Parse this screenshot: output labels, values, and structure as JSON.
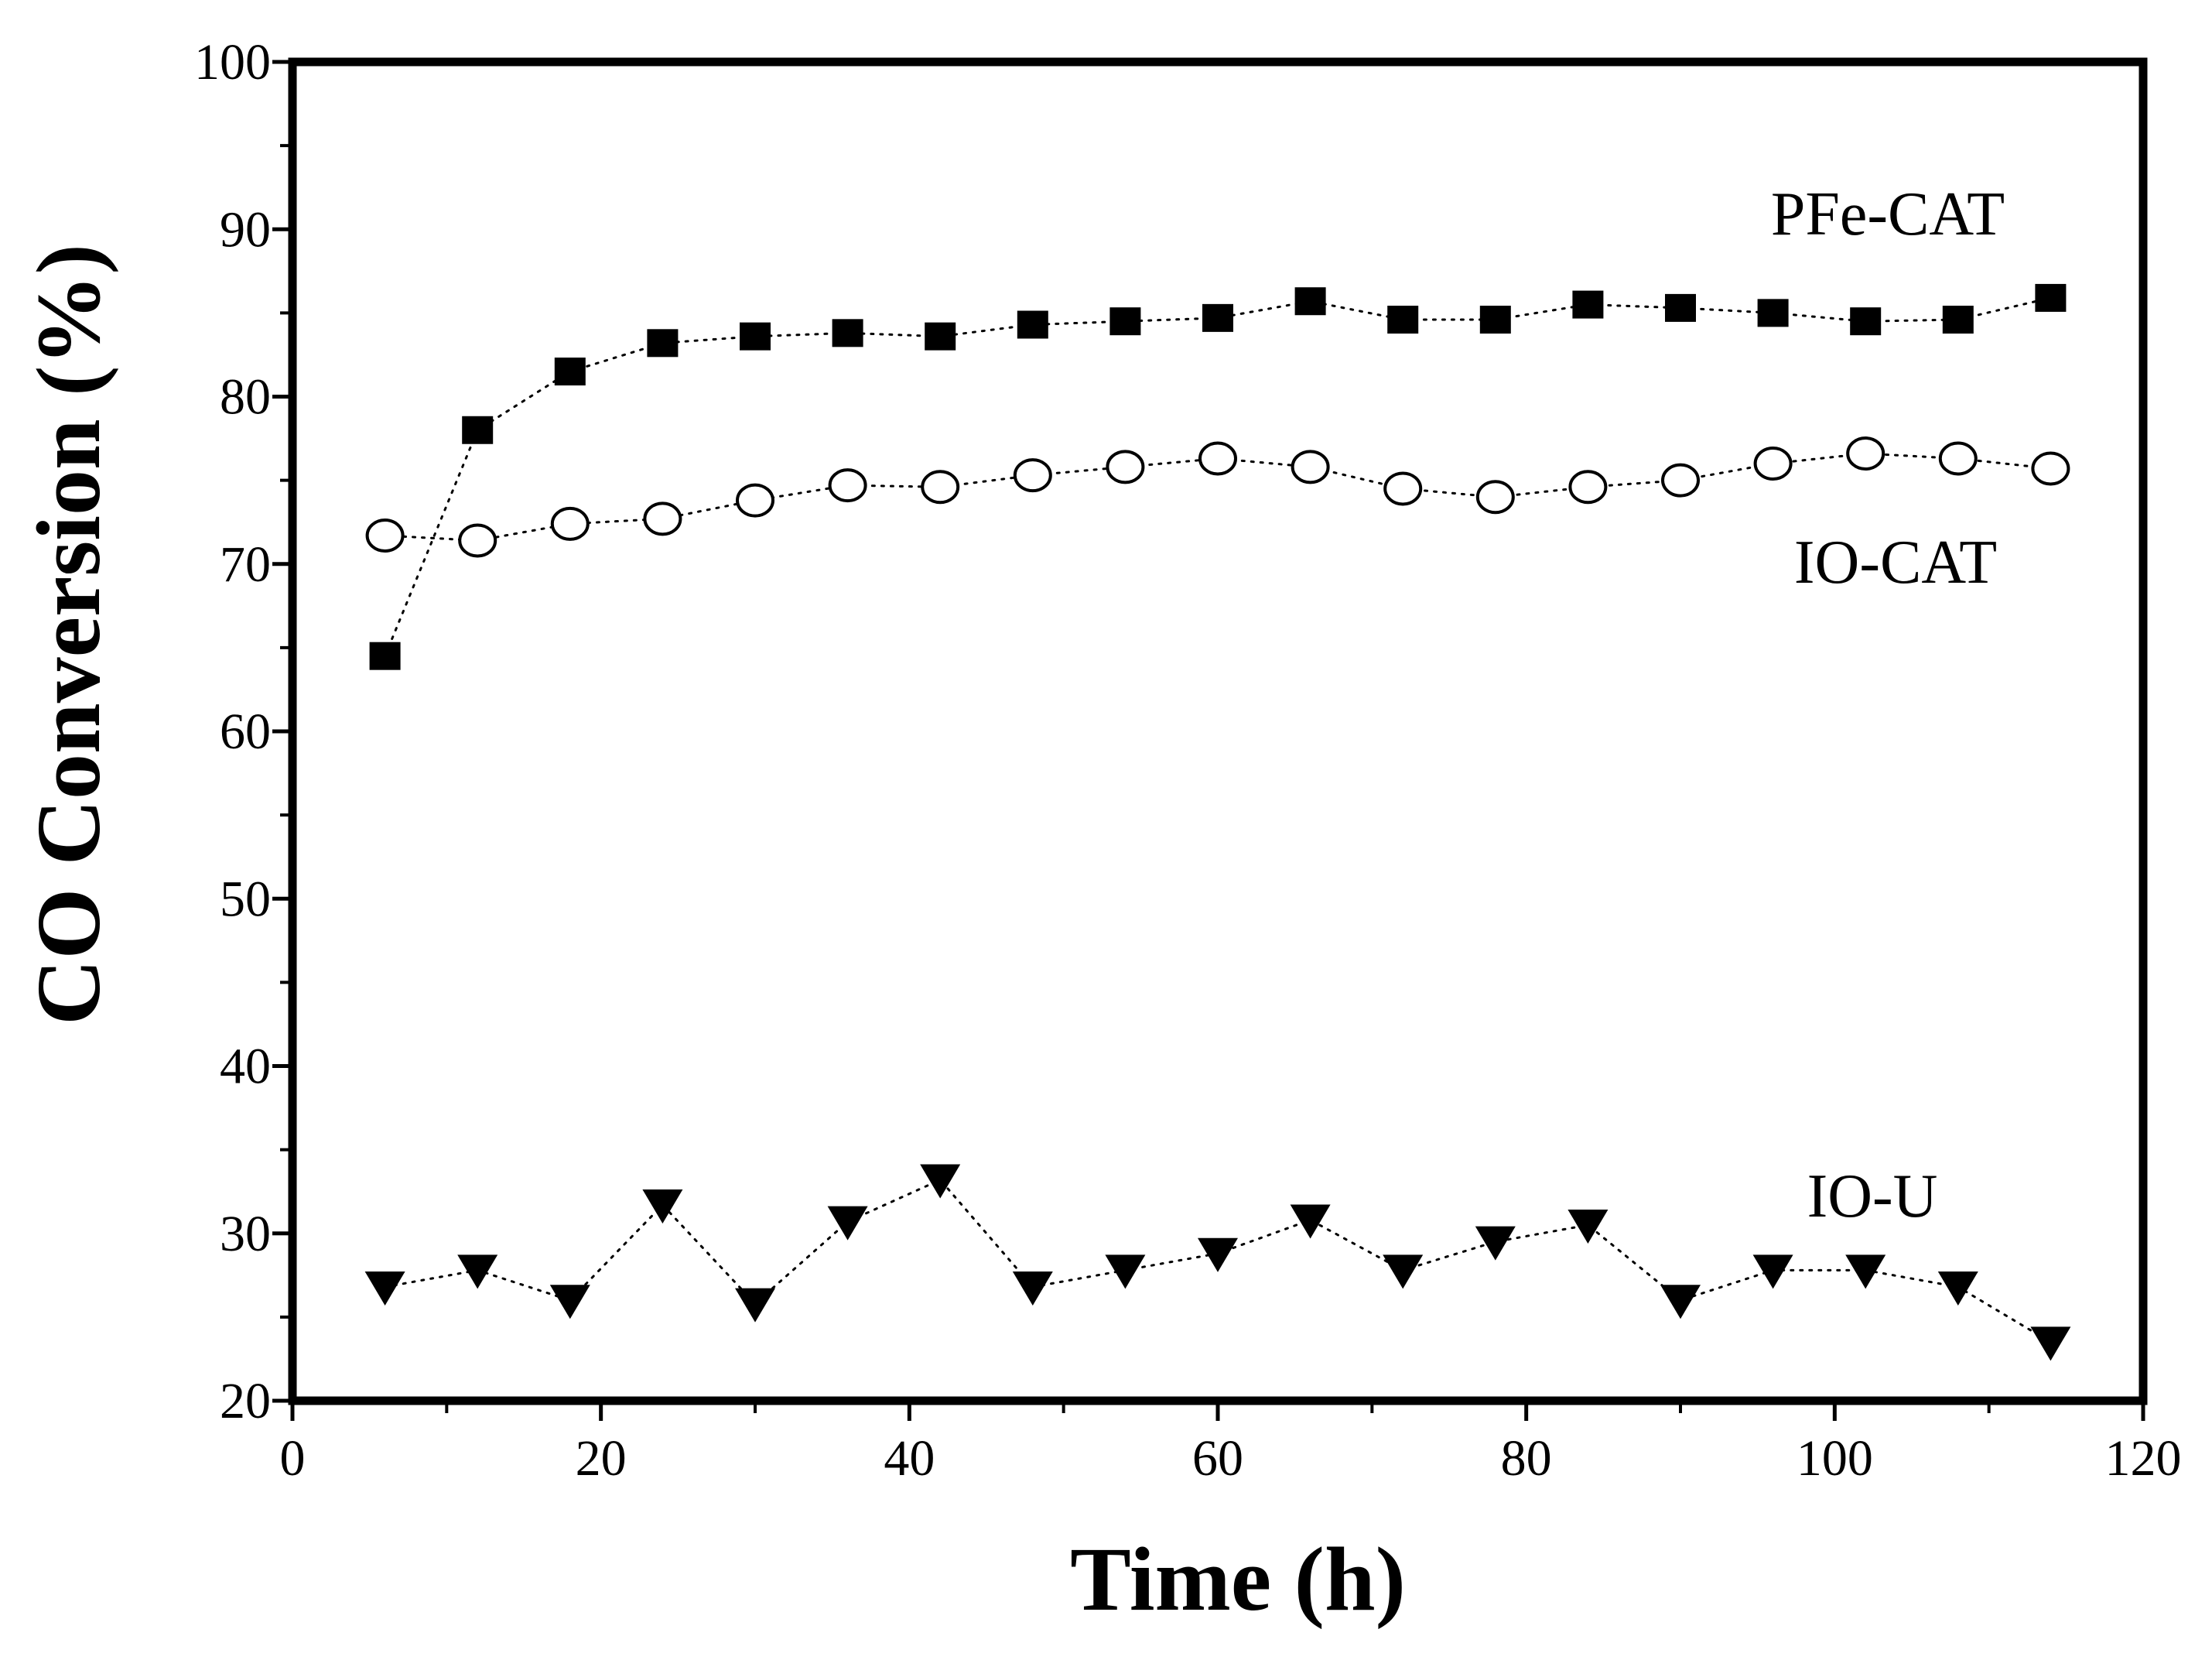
{
  "chart_data": {
    "type": "scatter",
    "title": "",
    "xlabel": "Time (h)",
    "ylabel": "CO Conversion (%)",
    "xlim": [
      0,
      120
    ],
    "ylim": [
      20,
      100
    ],
    "x_ticks": [
      0,
      20,
      40,
      60,
      80,
      100,
      120
    ],
    "y_ticks": [
      20,
      30,
      40,
      50,
      60,
      70,
      80,
      90,
      100
    ],
    "x_tick_labels": [
      "0",
      "20",
      "40",
      "60",
      "80",
      "100",
      "120"
    ],
    "y_tick_labels": [
      "20",
      "30",
      "40",
      "50",
      "60",
      "70",
      "80",
      "90",
      "100"
    ],
    "grid": false,
    "legend": "inline labels",
    "x": [
      6,
      12,
      18,
      24,
      30,
      36,
      42,
      48,
      54,
      60,
      66,
      72,
      78,
      84,
      90,
      96,
      102,
      108,
      114
    ],
    "series": [
      {
        "name": "PFe-CAT",
        "marker": "filled-square",
        "values": [
          64.5,
          78.0,
          81.5,
          83.2,
          83.6,
          83.8,
          83.6,
          84.3,
          84.5,
          84.7,
          85.7,
          84.6,
          84.6,
          85.5,
          85.3,
          85.0,
          84.5,
          84.6,
          85.9
        ]
      },
      {
        "name": "IO-CAT",
        "marker": "open-circle",
        "values": [
          71.7,
          71.4,
          72.4,
          72.7,
          73.8,
          74.7,
          74.6,
          75.3,
          75.8,
          76.3,
          75.8,
          74.5,
          74.0,
          74.6,
          75.0,
          76.0,
          76.6,
          76.3,
          75.7
        ]
      },
      {
        "name": "IO-U",
        "marker": "filled-down-triangle",
        "values": [
          26.8,
          27.8,
          26.0,
          31.7,
          25.8,
          30.7,
          33.2,
          26.8,
          27.8,
          28.8,
          30.8,
          27.8,
          29.5,
          30.5,
          26.0,
          27.8,
          27.8,
          26.8,
          23.5
        ]
      }
    ],
    "colors": {
      "marker": "#000000",
      "line": "#000000",
      "background": "#ffffff"
    }
  }
}
